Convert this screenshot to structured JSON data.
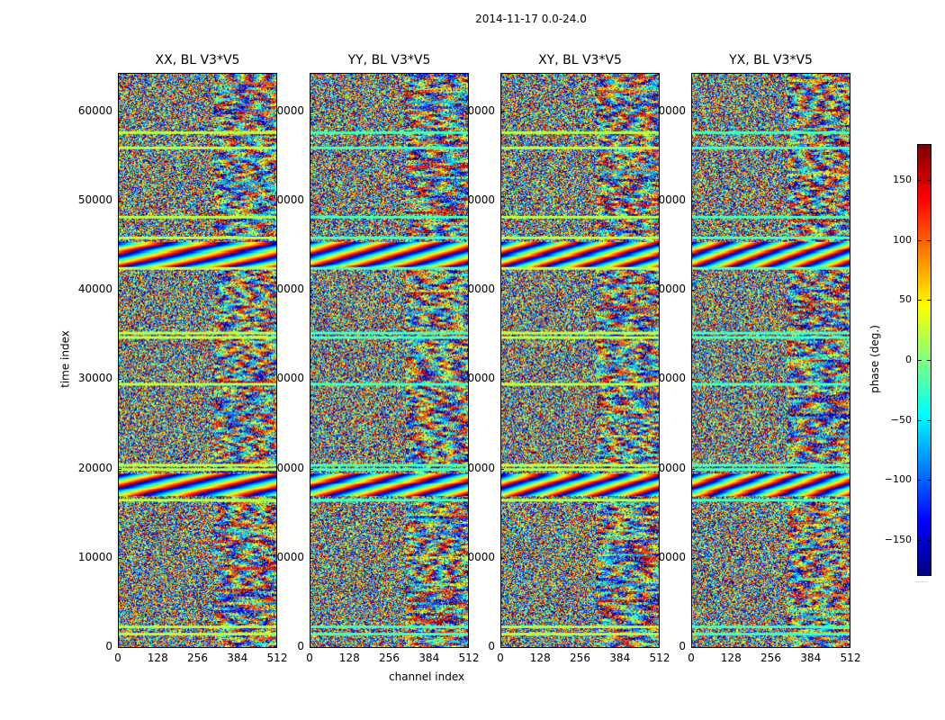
{
  "chart_data": {
    "type": "heatmap",
    "suptitle": "2014-11-17 0.0-24.0",
    "panels": [
      {
        "title": "XX, BL V3*V5"
      },
      {
        "title": "YY, BL V3*V5"
      },
      {
        "title": "XY, BL V3*V5"
      },
      {
        "title": "YX, BL V3*V5"
      }
    ],
    "xlabel": "channel index",
    "ylabel": "time index",
    "xlim": [
      0,
      512
    ],
    "ylim": [
      0,
      64300
    ],
    "xticks": [
      "0",
      "128",
      "256",
      "384",
      "512"
    ],
    "xtick_values": [
      0,
      128,
      256,
      384,
      512
    ],
    "yticks": [
      "0",
      "10000",
      "20000",
      "30000",
      "40000",
      "50000",
      "60000"
    ],
    "ytick_values": [
      0,
      10000,
      20000,
      30000,
      40000,
      50000,
      60000
    ],
    "colorbar": {
      "label": "phase (deg.)",
      "range": [
        -180,
        180
      ],
      "colormap": "jet",
      "ticks": [
        "150",
        "100",
        "50",
        "0",
        "−50",
        "−100",
        "−150"
      ],
      "tick_values": [
        150,
        100,
        50,
        0,
        -50,
        -100,
        -150
      ]
    },
    "features": {
      "fringe_bands_time": [
        [
          17000,
          19500
        ],
        [
          42500,
          45500
        ]
      ],
      "flagged_rows_time": [
        1500,
        2300,
        16500,
        20000,
        20500,
        29500,
        34800,
        35300,
        42500,
        46000,
        48300,
        56000,
        57700
      ]
    }
  }
}
